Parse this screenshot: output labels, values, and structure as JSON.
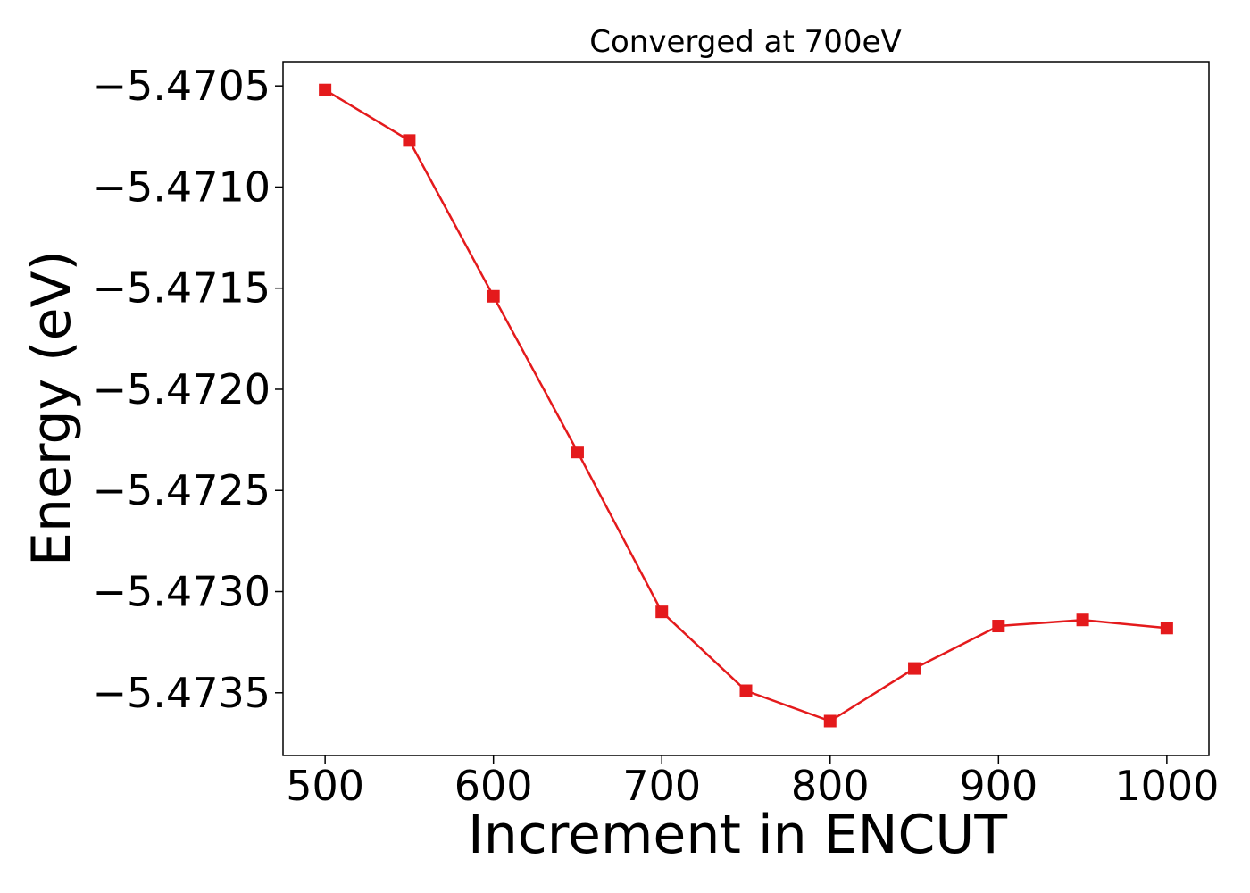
{
  "chart_data": {
    "type": "line",
    "title": "Converged at 700eV",
    "xlabel": "Increment in ENCUT",
    "ylabel": "Energy (eV)",
    "x": [
      500,
      550,
      600,
      650,
      700,
      750,
      800,
      850,
      900,
      950,
      1000
    ],
    "series": [
      {
        "values": [
          -5.47052,
          -5.47077,
          -5.47154,
          -5.47231,
          -5.4731,
          -5.47349,
          -5.47364,
          -5.47338,
          -5.47317,
          -5.47314,
          -5.47318
        ],
        "color": "#e41a1c",
        "marker": "square"
      }
    ],
    "xticks": [
      500,
      600,
      700,
      800,
      900,
      1000
    ],
    "xtick_labels": [
      "500",
      "600",
      "700",
      "800",
      "900",
      "1000"
    ],
    "yticks": [
      -5.4705,
      -5.471,
      -5.4715,
      -5.472,
      -5.4725,
      -5.473,
      -5.4735
    ],
    "ytick_labels": [
      "−5.4705",
      "−5.4710",
      "−5.4715",
      "−5.4720",
      "−5.4725",
      "−5.4730",
      "−5.4735"
    ],
    "xlim": [
      475,
      1025
    ],
    "ylim": [
      -5.47381,
      -5.47038
    ],
    "grid": false,
    "legend": "none"
  }
}
